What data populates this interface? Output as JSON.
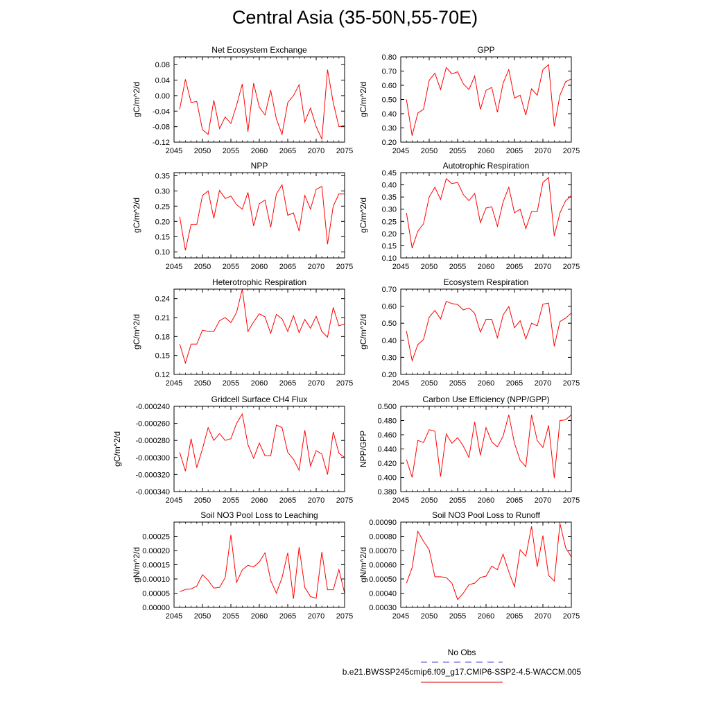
{
  "title": "Central Asia (35-50N,55-70E)",
  "legend": [
    {
      "label": "No Obs",
      "color": "#6b6bd6",
      "style": "dashed"
    },
    {
      "label": "b.e21.BWSSP245cmip6.f09_g17.CMIP6-SSP2-4.5-WACCM.005",
      "color": "#e03030",
      "style": "solid"
    }
  ],
  "line_color": "#ff0000",
  "chart_data": [
    {
      "type": "line",
      "title": "Net Ecosystem Exchange",
      "ylabel": "gC/m^2/d",
      "xlim": [
        2045,
        2075
      ],
      "ylim": [
        -0.12,
        0.1
      ],
      "yticks": [
        -0.12,
        -0.08,
        -0.04,
        0.0,
        0.04,
        0.08
      ],
      "ytick_labels": [
        "-0.12",
        "-0.08",
        "-0.04",
        "0.00",
        "0.04",
        "0.08"
      ],
      "xticks": [
        2045,
        2050,
        2055,
        2060,
        2065,
        2070,
        2075
      ],
      "x_start": 2046,
      "values": [
        -0.035,
        0.042,
        -0.018,
        -0.015,
        -0.088,
        -0.1,
        -0.012,
        -0.085,
        -0.055,
        -0.072,
        -0.025,
        0.03,
        -0.093,
        0.032,
        -0.03,
        -0.05,
        0.014,
        -0.06,
        -0.1,
        -0.018,
        0.0,
        0.028,
        -0.068,
        -0.032,
        -0.08,
        -0.112,
        0.067,
        -0.018,
        -0.08,
        -0.077
      ]
    },
    {
      "type": "line",
      "title": "GPP",
      "ylabel": "gC/m^2/d",
      "xlim": [
        2045,
        2075
      ],
      "ylim": [
        0.2,
        0.8
      ],
      "yticks": [
        0.2,
        0.3,
        0.4,
        0.5,
        0.6,
        0.7,
        0.8
      ],
      "ytick_labels": [
        "0.20",
        "0.30",
        "0.40",
        "0.50",
        "0.60",
        "0.70",
        "0.80"
      ],
      "xticks": [
        2045,
        2050,
        2055,
        2060,
        2065,
        2070,
        2075
      ],
      "x_start": 2046,
      "values": [
        0.5,
        0.245,
        0.405,
        0.43,
        0.635,
        0.685,
        0.57,
        0.725,
        0.68,
        0.695,
        0.61,
        0.57,
        0.665,
        0.43,
        0.565,
        0.585,
        0.41,
        0.615,
        0.71,
        0.51,
        0.53,
        0.39,
        0.575,
        0.53,
        0.71,
        0.745,
        0.31,
        0.53,
        0.625,
        0.645
      ]
    },
    {
      "type": "line",
      "title": "NPP",
      "ylabel": "gC/m^2/d",
      "xlim": [
        2045,
        2075
      ],
      "ylim": [
        0.08,
        0.36
      ],
      "yticks": [
        0.1,
        0.15,
        0.2,
        0.25,
        0.3,
        0.35
      ],
      "ytick_labels": [
        "0.10",
        "0.15",
        "0.20",
        "0.25",
        "0.30",
        "0.35"
      ],
      "xticks": [
        2045,
        2050,
        2055,
        2060,
        2065,
        2070,
        2075
      ],
      "x_start": 2046,
      "values": [
        0.215,
        0.105,
        0.19,
        0.19,
        0.285,
        0.3,
        0.21,
        0.302,
        0.275,
        0.283,
        0.255,
        0.24,
        0.295,
        0.185,
        0.258,
        0.27,
        0.18,
        0.29,
        0.32,
        0.22,
        0.228,
        0.168,
        0.285,
        0.24,
        0.305,
        0.315,
        0.125,
        0.25,
        0.29,
        0.29
      ]
    },
    {
      "type": "line",
      "title": "Autotrophic Respiration",
      "ylabel": "gC/m^2/d",
      "xlim": [
        2045,
        2075
      ],
      "ylim": [
        0.1,
        0.45
      ],
      "yticks": [
        0.1,
        0.15,
        0.2,
        0.25,
        0.3,
        0.35,
        0.4,
        0.45
      ],
      "ytick_labels": [
        "0.10",
        "0.15",
        "0.20",
        "0.25",
        "0.30",
        "0.35",
        "0.40",
        "0.45"
      ],
      "xticks": [
        2045,
        2050,
        2055,
        2060,
        2065,
        2070,
        2075
      ],
      "x_start": 2046,
      "values": [
        0.285,
        0.14,
        0.21,
        0.24,
        0.35,
        0.39,
        0.34,
        0.425,
        0.405,
        0.41,
        0.36,
        0.335,
        0.365,
        0.245,
        0.305,
        0.31,
        0.23,
        0.33,
        0.39,
        0.285,
        0.3,
        0.22,
        0.29,
        0.29,
        0.41,
        0.43,
        0.19,
        0.285,
        0.335,
        0.355
      ]
    },
    {
      "type": "line",
      "title": "Heterotrophic Respiration",
      "ylabel": "gC/m^2/d",
      "xlim": [
        2045,
        2075
      ],
      "ylim": [
        0.12,
        0.255
      ],
      "yticks": [
        0.12,
        0.15,
        0.18,
        0.21,
        0.24
      ],
      "ytick_labels": [
        "0.12",
        "0.15",
        "0.18",
        "0.21",
        "0.24"
      ],
      "xticks": [
        2045,
        2050,
        2055,
        2060,
        2065,
        2070,
        2075
      ],
      "x_start": 2046,
      "values": [
        0.168,
        0.138,
        0.168,
        0.168,
        0.19,
        0.188,
        0.188,
        0.205,
        0.21,
        0.202,
        0.218,
        0.255,
        0.188,
        0.203,
        0.216,
        0.211,
        0.185,
        0.215,
        0.208,
        0.188,
        0.213,
        0.186,
        0.207,
        0.193,
        0.212,
        0.188,
        0.179,
        0.226,
        0.197,
        0.2
      ]
    },
    {
      "type": "line",
      "title": "Ecosystem Respiration",
      "ylabel": "gC/m^2/d",
      "xlim": [
        2045,
        2075
      ],
      "ylim": [
        0.2,
        0.7
      ],
      "yticks": [
        0.2,
        0.3,
        0.4,
        0.5,
        0.6,
        0.7
      ],
      "ytick_labels": [
        "0.20",
        "0.30",
        "0.40",
        "0.50",
        "0.60",
        "0.70"
      ],
      "xticks": [
        2045,
        2050,
        2055,
        2060,
        2065,
        2070,
        2075
      ],
      "x_start": 2046,
      "values": [
        0.455,
        0.28,
        0.375,
        0.405,
        0.535,
        0.575,
        0.525,
        0.628,
        0.615,
        0.61,
        0.578,
        0.59,
        0.558,
        0.448,
        0.523,
        0.523,
        0.415,
        0.548,
        0.598,
        0.473,
        0.515,
        0.408,
        0.5,
        0.485,
        0.612,
        0.618,
        0.365,
        0.51,
        0.53,
        0.56
      ]
    },
    {
      "type": "line",
      "title": "Gridcell Surface CH4 Flux",
      "ylabel": "gC/m^2/d",
      "xlim": [
        2045,
        2075
      ],
      "ylim": [
        -0.00034,
        -0.00024
      ],
      "yticks": [
        -0.00034,
        -0.00032,
        -0.0003,
        -0.00028,
        -0.00026,
        -0.00024
      ],
      "ytick_labels": [
        "-0.000340",
        "-0.000320",
        "-0.000300",
        "-0.000280",
        "-0.000260",
        "-0.000240"
      ],
      "xticks": [
        2045,
        2050,
        2055,
        2060,
        2065,
        2070,
        2075
      ],
      "x_start": 2046,
      "values": [
        -0.000294,
        -0.000316,
        -0.000278,
        -0.000312,
        -0.00029,
        -0.000265,
        -0.00028,
        -0.000272,
        -0.00028,
        -0.000278,
        -0.00026,
        -0.000249,
        -0.000285,
        -0.000301,
        -0.000283,
        -0.000298,
        -0.000298,
        -0.000262,
        -0.000265,
        -0.000294,
        -0.000302,
        -0.000315,
        -0.000268,
        -0.00031,
        -0.000292,
        -0.000296,
        -0.00032,
        -0.00027,
        -0.000295,
        -0.0003
      ]
    },
    {
      "type": "line",
      "title": "Carbon Use Efficiency (NPP/GPP)",
      "ylabel": "NPP/GPP",
      "xlim": [
        2045,
        2075
      ],
      "ylim": [
        0.38,
        0.5
      ],
      "yticks": [
        0.38,
        0.4,
        0.42,
        0.44,
        0.46,
        0.48,
        0.5
      ],
      "ytick_labels": [
        "0.380",
        "0.400",
        "0.420",
        "0.440",
        "0.460",
        "0.480",
        "0.500"
      ],
      "xticks": [
        2045,
        2050,
        2055,
        2060,
        2065,
        2070,
        2075
      ],
      "x_start": 2046,
      "values": [
        0.425,
        0.4,
        0.452,
        0.449,
        0.467,
        0.465,
        0.401,
        0.461,
        0.448,
        0.456,
        0.444,
        0.428,
        0.478,
        0.431,
        0.47,
        0.45,
        0.443,
        0.458,
        0.488,
        0.448,
        0.424,
        0.415,
        0.488,
        0.452,
        0.442,
        0.473,
        0.399,
        0.48,
        0.481,
        0.488
      ]
    },
    {
      "type": "line",
      "title": "Soil NO3 Pool Loss to Leaching",
      "ylabel": "gN/m^2/d",
      "xlim": [
        2045,
        2075
      ],
      "ylim": [
        0.0,
        0.0003
      ],
      "yticks": [
        0.0,
        5e-05,
        0.0001,
        0.00015,
        0.0002,
        0.00025
      ],
      "ytick_labels": [
        "0.00000",
        "0.00005",
        "0.00010",
        "0.00015",
        "0.00020",
        "0.00025"
      ],
      "xticks": [
        2045,
        2050,
        2055,
        2060,
        2065,
        2070,
        2075
      ],
      "x_start": 2046,
      "values": [
        5.5e-05,
        6.3e-05,
        6.5e-05,
        7.5e-05,
        0.000115,
        9.5e-05,
        6.8e-05,
        7e-05,
        0.000105,
        0.000255,
        8.8e-05,
        0.000132,
        0.000148,
        0.000142,
        0.00016,
        0.000192,
        9.5e-05,
        5e-05,
        0.000105,
        0.000192,
        3e-05,
        0.000212,
        7e-05,
        3.8e-05,
        3.2e-05,
        0.000195,
        6.2e-05,
        6.2e-05,
        0.000133,
        5e-05
      ]
    },
    {
      "type": "line",
      "title": "Soil NO3 Pool Loss to Runoff",
      "ylabel": "gN/m^2/d",
      "xlim": [
        2045,
        2075
      ],
      "ylim": [
        0.0003,
        0.0009
      ],
      "yticks": [
        0.0003,
        0.0004,
        0.0005,
        0.0006,
        0.0007,
        0.0008,
        0.0009
      ],
      "ytick_labels": [
        "0.00030",
        "0.00040",
        "0.00050",
        "0.00060",
        "0.00070",
        "0.00080",
        "0.00090"
      ],
      "xticks": [
        2045,
        2050,
        2055,
        2060,
        2065,
        2070,
        2075
      ],
      "x_start": 2046,
      "values": [
        0.00047,
        0.00058,
        0.000835,
        0.000765,
        0.000705,
        0.000515,
        0.000515,
        0.00051,
        0.00047,
        0.000355,
        0.0004,
        0.00046,
        0.00047,
        0.00051,
        0.00052,
        0.00059,
        0.000565,
        0.000675,
        0.00055,
        0.000445,
        0.000705,
        0.00066,
        0.00087,
        0.000585,
        0.000805,
        0.000525,
        0.000485,
        0.00089,
        0.00072,
        0.000655
      ]
    }
  ]
}
